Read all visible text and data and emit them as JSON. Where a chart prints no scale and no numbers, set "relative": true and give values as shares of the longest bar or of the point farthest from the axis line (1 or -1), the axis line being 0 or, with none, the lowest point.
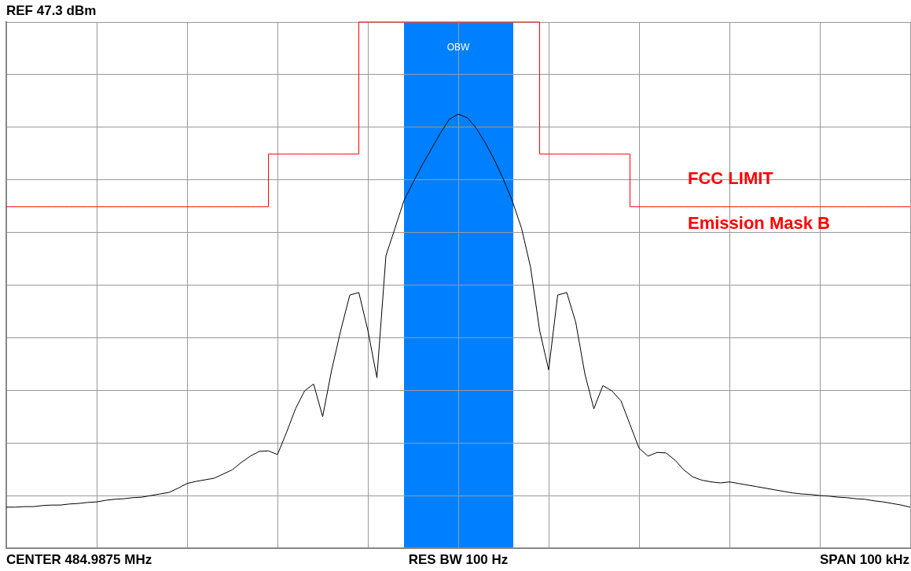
{
  "chart_data": {
    "type": "line",
    "title": "REF 47.3 dBm",
    "xlabel": "RES BW 100 Hz",
    "relative": true,
    "categories": [
      null,
      null,
      null,
      null,
      null,
      null,
      null,
      null,
      null,
      null,
      null,
      null,
      null,
      null,
      null,
      null,
      null,
      null,
      null,
      null,
      null,
      null,
      null,
      null,
      null,
      null,
      null,
      null,
      null,
      null,
      null,
      null,
      null,
      null,
      null,
      null,
      null,
      null,
      null,
      null,
      null,
      null,
      null,
      null,
      null,
      null,
      null,
      null,
      null,
      null,
      null,
      null,
      null,
      null,
      null,
      null,
      null,
      null,
      null,
      null,
      null,
      null,
      null,
      null,
      null,
      null,
      null,
      null,
      null,
      null,
      null,
      null,
      null,
      null,
      null,
      null,
      null,
      null,
      null,
      null,
      null,
      null,
      null,
      null,
      null,
      null,
      null,
      null,
      null,
      null,
      null,
      null,
      null,
      null,
      null,
      null,
      null,
      null,
      null,
      null,
      null
    ],
    "grid": true,
    "legend": false,
    "marker": "none",
    "line_style": "solid",
    "series": [
      {
        "color": "#000000",
        "values": [
          0.078,
          0.078,
          0.079,
          0.079,
          0.081,
          0.082,
          0.082,
          0.084,
          0.085,
          0.087,
          0.088,
          0.091,
          0.093,
          0.094,
          0.096,
          0.097,
          0.1,
          0.103,
          0.106,
          0.114,
          0.123,
          0.127,
          0.13,
          0.133,
          0.141,
          0.149,
          0.163,
          0.175,
          0.184,
          0.185,
          0.178,
          0.22,
          0.265,
          0.299,
          0.312,
          0.25,
          0.339,
          0.414,
          0.481,
          0.486,
          0.414,
          0.324,
          0.556,
          0.608,
          0.661,
          0.695,
          0.728,
          0.758,
          0.788,
          0.815,
          0.825,
          0.818,
          0.798,
          0.77,
          0.738,
          0.701,
          0.659,
          0.608,
          0.534,
          0.414,
          0.339,
          0.481,
          0.486,
          0.429,
          0.332,
          0.265,
          0.309,
          0.299,
          0.28,
          0.235,
          0.19,
          0.175,
          0.182,
          0.181,
          0.167,
          0.148,
          0.135,
          0.129,
          0.126,
          0.124,
          0.126,
          0.123,
          0.12,
          0.117,
          0.114,
          0.111,
          0.108,
          0.105,
          0.103,
          0.102,
          0.1,
          0.099,
          0.097,
          0.096,
          0.094,
          0.093,
          0.09,
          0.088,
          0.085,
          0.082,
          0.078
        ]
      },
      {
        "type": "step",
        "color": "#ff0000",
        "values": [
          0.649,
          0.649,
          0.649,
          0.649,
          0.649,
          0.649,
          0.649,
          0.649,
          0.649,
          0.649,
          0.649,
          0.649,
          0.649,
          0.649,
          0.649,
          0.649,
          0.649,
          0.649,
          0.649,
          0.649,
          0.649,
          0.649,
          0.649,
          0.649,
          0.649,
          0.649,
          0.649,
          0.649,
          0.649,
          0.649,
          0.749,
          0.749,
          0.749,
          0.749,
          0.749,
          0.749,
          0.749,
          0.749,
          0.749,
          0.749,
          1.0,
          1.0,
          1.0,
          1.0,
          1.0,
          1.0,
          1.0,
          1.0,
          1.0,
          1.0,
          1.0,
          1.0,
          1.0,
          1.0,
          1.0,
          1.0,
          1.0,
          1.0,
          1.0,
          1.0,
          0.749,
          0.749,
          0.749,
          0.749,
          0.749,
          0.749,
          0.749,
          0.749,
          0.749,
          0.749,
          0.649,
          0.649,
          0.649,
          0.649,
          0.649,
          0.649,
          0.649,
          0.649,
          0.649,
          0.649,
          0.649,
          0.649,
          0.649,
          0.649,
          0.649,
          0.649,
          0.649,
          0.649,
          0.649,
          0.649,
          0.649,
          0.649,
          0.649,
          0.649,
          0.649,
          0.649,
          0.649,
          0.649,
          0.649,
          0.649,
          0.649
        ]
      }
    ],
    "annotations": [
      "FCC LIMIT",
      "Emission Mask B",
      "OBW",
      "CENTER 484.9875 MHz",
      "SPAN 100 kHz"
    ]
  }
}
